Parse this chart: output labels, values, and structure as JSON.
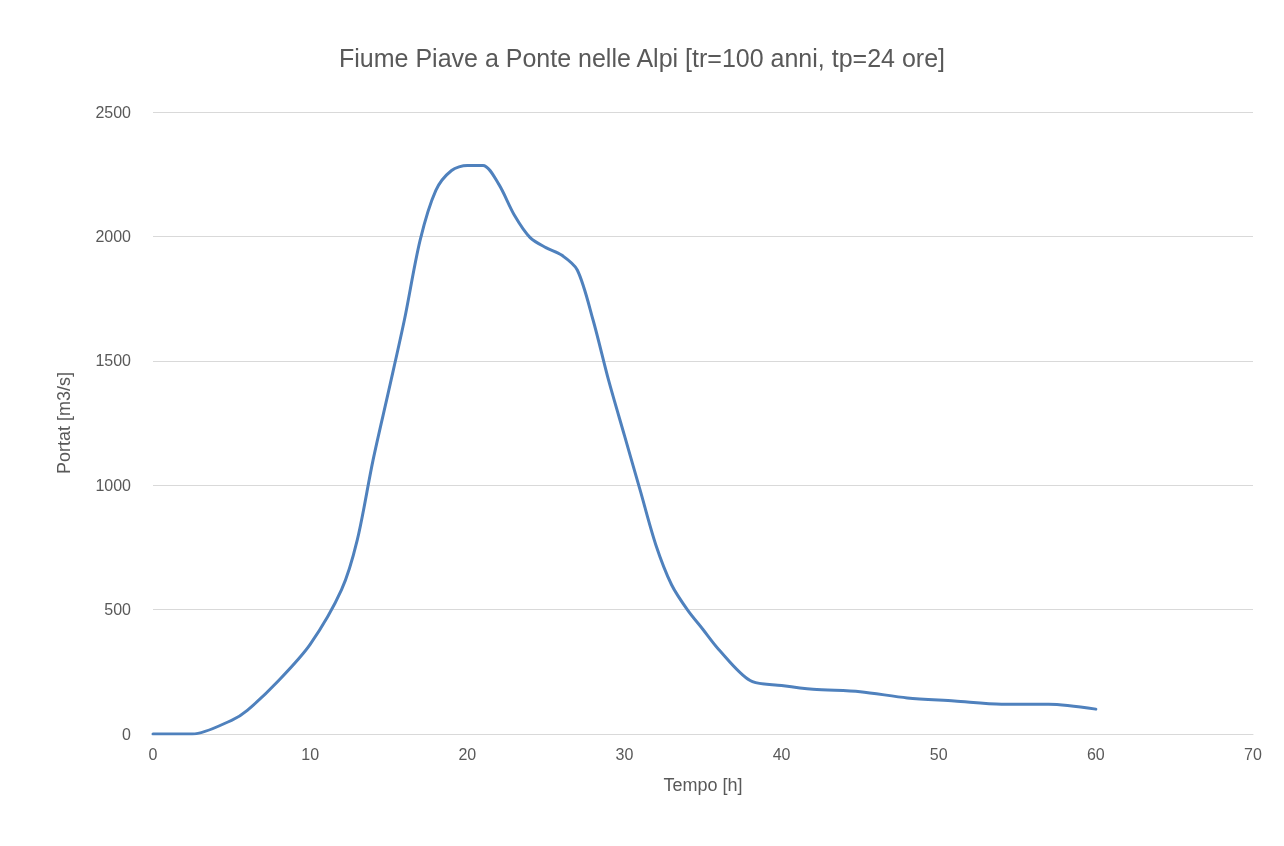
{
  "chart_data": {
    "type": "line",
    "title": "Fiume Piave a Ponte nelle Alpi [tr=100 anni, tp=24 ore]",
    "xlabel": "Tempo [h]",
    "ylabel": "Portat [m3/s]",
    "x": [
      0,
      2.5,
      5,
      6,
      8,
      10,
      12,
      13,
      14,
      15,
      16,
      17,
      18,
      19,
      20,
      21,
      22,
      23,
      24,
      25,
      26,
      27,
      28,
      29,
      30,
      31,
      32,
      33,
      34,
      35,
      36,
      38,
      40,
      42,
      45,
      48,
      51,
      54,
      57,
      60
    ],
    "series": [
      {
        "color": "#4f81bd",
        "values": [
          0,
          0,
          55,
          95,
          215,
          360,
          580,
          780,
          1100,
          1380,
          1665,
          1985,
          2185,
          2265,
          2285,
          2285,
          2210,
          2085,
          1995,
          1955,
          1925,
          1865,
          1665,
          1420,
          1200,
          980,
          760,
          600,
          500,
          420,
          340,
          215,
          195,
          180,
          170,
          145,
          133,
          120,
          120,
          100
        ]
      }
    ],
    "xlim": [
      0,
      70
    ],
    "xticks": [
      0,
      10,
      20,
      30,
      40,
      50,
      60,
      70
    ],
    "ylim": [
      0,
      2500
    ],
    "yticks": [
      0,
      500,
      1000,
      1500,
      2000,
      2500
    ],
    "grid": "y",
    "marker": "none",
    "line_style": "solid"
  }
}
